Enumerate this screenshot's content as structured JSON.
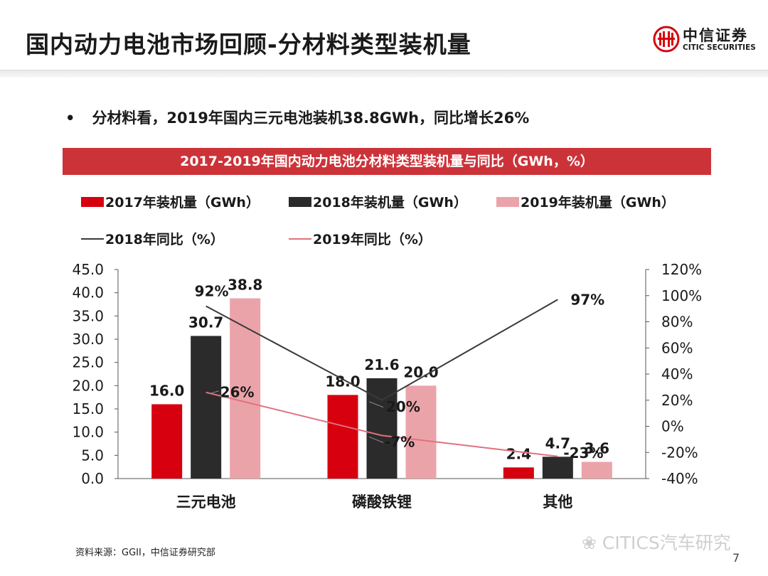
{
  "slide": {
    "title": "国内动力电池市场回顾-分材料类型装机量",
    "bullet": "分材料看，2019年国内三元电池装机38.8GWh，同比增长26%",
    "page_number": "7"
  },
  "logo": {
    "name_cn": "中信证券",
    "name_en": "CITIC SECURITIES"
  },
  "footer": {
    "source": "资料来源：GGII，中信证券研究部",
    "watermark": "CITICS汽车研究"
  },
  "chart_data": {
    "type": "bar",
    "title": "2017-2019年国内动力电池分材料类型装机量与同比（GWh，%）",
    "categories": [
      "三元电池",
      "磷酸铁锂",
      "其他"
    ],
    "series": [
      {
        "name": "2017年装机量（GWh）",
        "type": "bar",
        "axis": "left",
        "color": "#d7000f",
        "values": [
          16.0,
          18.0,
          2.4
        ],
        "labels": [
          "16.0",
          "18.0",
          "2.4"
        ]
      },
      {
        "name": "2018年装机量（GWh）",
        "type": "bar",
        "axis": "left",
        "color": "#2b2b2b",
        "values": [
          30.7,
          21.6,
          4.7
        ],
        "labels": [
          "30.7",
          "21.6",
          "4.7"
        ]
      },
      {
        "name": "2019年装机量（GWh）",
        "type": "bar",
        "axis": "left",
        "color": "#eba3aa",
        "values": [
          38.8,
          20.0,
          3.6
        ],
        "labels": [
          "38.8",
          "20.0",
          "3.6"
        ]
      },
      {
        "name": "2018年同比（%）",
        "type": "line",
        "axis": "right",
        "color": "#3a3a3a",
        "values": [
          92,
          20,
          97
        ],
        "labels": [
          "92%",
          "20%",
          "97%"
        ]
      },
      {
        "name": "2019年同比（%）",
        "type": "line",
        "axis": "right",
        "color": "#e0717c",
        "values": [
          26,
          -7,
          -23
        ],
        "labels": [
          "26%",
          "-7%",
          "-23%"
        ]
      }
    ],
    "y_left": {
      "min": 0,
      "max": 45,
      "ticks": [
        "0.0",
        "5.0",
        "10.0",
        "15.0",
        "20.0",
        "25.0",
        "30.0",
        "35.0",
        "40.0",
        "45.0"
      ]
    },
    "y_right": {
      "min": -40,
      "max": 120,
      "ticks": [
        "-40%",
        "-20%",
        "0%",
        "20%",
        "40%",
        "60%",
        "80%",
        "100%",
        "120%"
      ]
    },
    "grid": false,
    "legend_position": "top"
  }
}
